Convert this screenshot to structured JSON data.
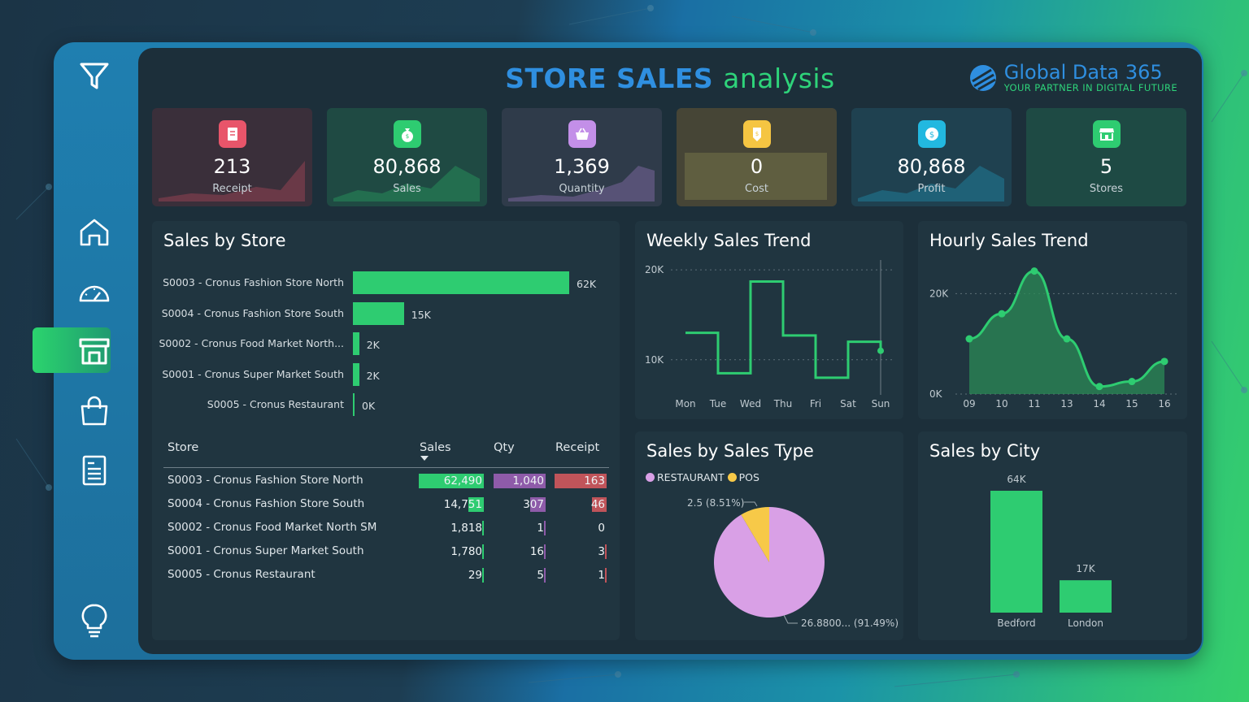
{
  "title": {
    "part1": "STORE SALES",
    "part2": "analysis"
  },
  "brand": {
    "name": "Global Data 365",
    "tagline": "YOUR PARTNER IN DIGITAL FUTURE"
  },
  "colors": {
    "green": "#2ecc71",
    "purple": "#8e5ba9",
    "red": "#c0545a",
    "pie_restaurant": "#d9a0e6",
    "pie_pos": "#f7c948",
    "accent_blue": "#2f8fe0"
  },
  "sidebar": {
    "items": [
      {
        "icon": "filter-icon"
      },
      {
        "icon": "home-icon"
      },
      {
        "icon": "gauge-icon"
      },
      {
        "icon": "store-icon",
        "active": true
      },
      {
        "icon": "shopping-bag-icon"
      },
      {
        "icon": "report-icon"
      },
      {
        "icon": "lightbulb-icon"
      }
    ]
  },
  "kpis": [
    {
      "value": "213",
      "label": "Receipt",
      "icon": "receipt-icon",
      "color": "#e8556a"
    },
    {
      "value": "80,868",
      "label": "Sales",
      "icon": "money-bag-icon",
      "color": "#2ecc71"
    },
    {
      "value": "1,369",
      "label": "Quantity",
      "icon": "basket-icon",
      "color": "#c38fe8"
    },
    {
      "value": "0",
      "label": "Cost",
      "icon": "price-tag-icon",
      "color": "#f5c542"
    },
    {
      "value": "80,868",
      "label": "Profit",
      "icon": "dollar-badge-icon",
      "color": "#22b8e0"
    },
    {
      "value": "5",
      "label": "Stores",
      "icon": "store-icon",
      "color": "#2ecc71"
    }
  ],
  "sales_by_store": {
    "title": "Sales by Store",
    "chart_data": {
      "type": "bar",
      "orientation": "horizontal",
      "categories": [
        "S0003 - Cronus Fashion Store North",
        "S0004 - Cronus Fashion Store South",
        "S0002 - Cronus Food Market North...",
        "S0001 - Cronus Super Market South",
        "S0005 - Cronus Restaurant"
      ],
      "values": [
        62490,
        14751,
        1818,
        1780,
        29
      ],
      "labels": [
        "62K",
        "15K",
        "2K",
        "2K",
        "0K"
      ]
    }
  },
  "table": {
    "headers": [
      "Store",
      "Sales",
      "Qty",
      "Receipt"
    ],
    "rows": [
      {
        "store": "S0003 - Cronus Fashion Store North",
        "sales": "62,490",
        "qty": "1,040",
        "receipt": "163",
        "sales_v": 62490,
        "qty_v": 1040,
        "receipt_v": 163
      },
      {
        "store": "S0004 - Cronus Fashion Store South",
        "sales": "14,751",
        "qty": "307",
        "receipt": "46",
        "sales_v": 14751,
        "qty_v": 307,
        "receipt_v": 46
      },
      {
        "store": "S0002 - Cronus Food Market North SM",
        "sales": "1,818",
        "qty": "1",
        "receipt": "0",
        "sales_v": 1818,
        "qty_v": 1,
        "receipt_v": 0
      },
      {
        "store": "S0001 - Cronus Super Market South",
        "sales": "1,780",
        "qty": "16",
        "receipt": "3",
        "sales_v": 1780,
        "qty_v": 16,
        "receipt_v": 3
      },
      {
        "store": "S0005 - Cronus Restaurant",
        "sales": "29",
        "qty": "5",
        "receipt": "1",
        "sales_v": 29,
        "qty_v": 5,
        "receipt_v": 1
      }
    ]
  },
  "weekly": {
    "title": "Weekly Sales Trend",
    "chart_data": {
      "type": "line",
      "step": true,
      "x": [
        "Mon",
        "Tue",
        "Wed",
        "Thu",
        "Fri",
        "Sat",
        "Sun"
      ],
      "values": [
        13000,
        8500,
        18700,
        12700,
        8000,
        12000,
        11000
      ],
      "yticks": [
        "10K",
        "20K"
      ],
      "ylim": [
        6000,
        22000
      ]
    }
  },
  "hourly": {
    "title": "Hourly Sales Trend",
    "chart_data": {
      "type": "area",
      "x": [
        "09",
        "10",
        "11",
        "13",
        "14",
        "15",
        "16"
      ],
      "values": [
        11000,
        16000,
        24500,
        11000,
        1500,
        2500,
        6500
      ],
      "yticks": [
        "0K",
        "20K"
      ],
      "ylim": [
        0,
        28000
      ]
    }
  },
  "sales_type": {
    "title": "Sales by Sales Type",
    "legend": [
      "RESTAURANT",
      "POS"
    ],
    "chart_data": {
      "type": "pie",
      "slices": [
        {
          "name": "RESTAURANT",
          "pct": 91.49,
          "label": "26.8800... (91.49%)"
        },
        {
          "name": "POS",
          "pct": 8.51,
          "label": "2.5 (8.51%)"
        }
      ]
    }
  },
  "city": {
    "title": "Sales by City",
    "chart_data": {
      "type": "bar",
      "categories": [
        "Bedford",
        "London"
      ],
      "values": [
        64000,
        17000
      ],
      "labels": [
        "64K",
        "17K"
      ]
    }
  }
}
